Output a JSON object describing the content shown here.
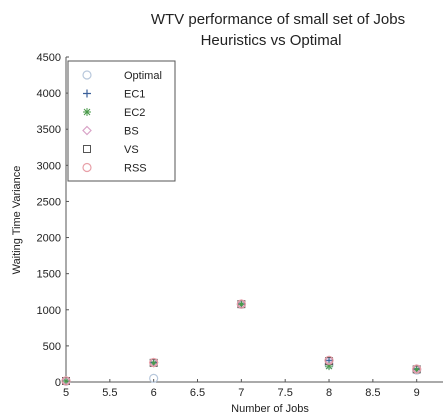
{
  "chart_data": {
    "type": "scatter",
    "title": "WTV performance of small set of Jobs",
    "subtitle": "Heuristics vs Optimal",
    "xlabel": "Number of Jobs",
    "ylabel": "Waiting Time Variance",
    "xlim": [
      5,
      9.3
    ],
    "ylim": [
      0,
      4500
    ],
    "xticks": [
      "5",
      "5.5",
      "6",
      "6.5",
      "7",
      "7.5",
      "8",
      "8.5",
      "9"
    ],
    "yticks": [
      "0",
      "500",
      "1000",
      "1500",
      "2000",
      "2500",
      "3000",
      "3500",
      "4000",
      "4500"
    ],
    "grid": false,
    "legend_position": "top-left",
    "series": [
      {
        "name": "Optimal",
        "marker": "circle",
        "color": "#b8c8dc",
        "x": [
          5,
          6,
          7,
          8,
          9
        ],
        "y": [
          10,
          50,
          1075,
          240,
          165
        ]
      },
      {
        "name": "EC1",
        "marker": "plus",
        "color": "#3a5f9a",
        "x": [
          5,
          6,
          7,
          8,
          9
        ],
        "y": [
          15,
          270,
          1080,
          300,
          180
        ]
      },
      {
        "name": "EC2",
        "marker": "star",
        "color": "#4a9a4a",
        "x": [
          5,
          6,
          7,
          8,
          9
        ],
        "y": [
          12,
          260,
          1075,
          220,
          170
        ]
      },
      {
        "name": "BS",
        "marker": "diamond",
        "color": "#d9a3c7",
        "x": [
          5,
          6,
          7,
          8,
          9
        ],
        "y": [
          15,
          270,
          1080,
          300,
          180
        ]
      },
      {
        "name": "VS",
        "marker": "square",
        "color": "#555555",
        "x": [
          5,
          6,
          7,
          8,
          9
        ],
        "y": [
          14,
          265,
          1078,
          290,
          175
        ]
      },
      {
        "name": "RSS",
        "marker": "circle",
        "color": "#e8a0a8",
        "x": [
          5,
          6,
          7,
          8,
          9
        ],
        "y": [
          16,
          270,
          1080,
          300,
          180
        ]
      }
    ]
  }
}
